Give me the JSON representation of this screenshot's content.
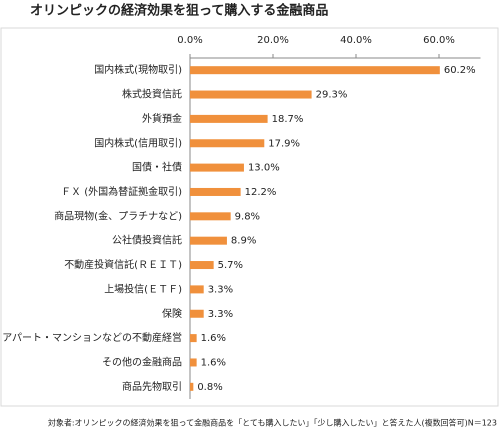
{
  "chart_data": {
    "type": "bar",
    "orientation": "horizontal",
    "title": "オリンピックの経済効果を狙って購入する金融商品",
    "categories": [
      "国内株式(現物取引)",
      "株式投資信託",
      "外貨預金",
      "国内株式(信用取引)",
      "国債・社債",
      "ＦＸ (外国為替証拠金取引)",
      "商品現物(金、プラチナなど)",
      "公社債投資信託",
      "不動産投資信託(ＲＥＩＴ)",
      "上場投信(ＥＴＦ)",
      "保険",
      "アパート・マンションなどの不動産経営",
      "その他の金融商品",
      "商品先物取引"
    ],
    "values": [
      60.2,
      29.3,
      18.7,
      17.9,
      13.0,
      12.2,
      9.8,
      8.9,
      5.7,
      3.3,
      3.3,
      1.6,
      1.6,
      0.8
    ],
    "value_labels": [
      "60.2%",
      "29.3%",
      "18.7%",
      "17.9%",
      "13.0%",
      "12.2%",
      "9.8%",
      "8.9%",
      "5.7%",
      "3.3%",
      "3.3%",
      "1.6%",
      "1.6%",
      "0.8%"
    ],
    "color": "#f0903c",
    "xlim": [
      0,
      70
    ],
    "xticks": [
      {
        "value": 0,
        "label": "0.0%"
      },
      {
        "value": 20,
        "label": "20.0%"
      },
      {
        "value": 40,
        "label": "40.0%"
      },
      {
        "value": 60,
        "label": "60.0%"
      }
    ],
    "note": "対象者:オリンピックの経済効果を狙って金融商品を「とても購入したい」「少し購入したい」と答えた人(複数回答可)N＝123"
  }
}
